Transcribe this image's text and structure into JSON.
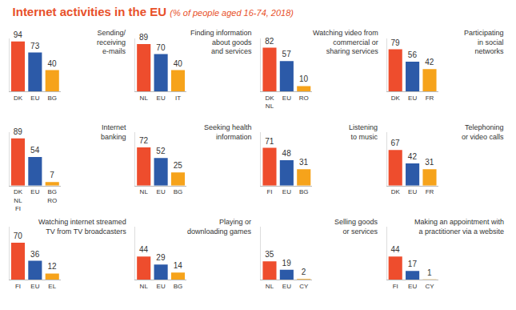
{
  "title": "Internet activities in the EU",
  "subtitle": "(% of people aged 16-74, 2018)",
  "chart_data": [
    {
      "type": "bar",
      "title": "Sending/\nreceiving\ne-mails",
      "categories": [
        "DK",
        "EU",
        "BG"
      ],
      "values": [
        94,
        73,
        40
      ],
      "colors": [
        "#ee4d2d",
        "#2c5aa8",
        "#f6a31b"
      ],
      "data_labels": true,
      "tick_labels": "x",
      "ylim": [
        0,
        100
      ]
    },
    {
      "type": "bar",
      "title": "Finding information\nabout goods\nand services",
      "categories": [
        "NL",
        "EU",
        "IT"
      ],
      "values": [
        89,
        70,
        40
      ],
      "colors": [
        "#ee4d2d",
        "#2c5aa8",
        "#f6a31b"
      ],
      "data_labels": true,
      "tick_labels": "x",
      "ylim": [
        0,
        100
      ]
    },
    {
      "type": "bar",
      "title": "Watching video from\ncommercial or\nsharing services",
      "categories": [
        "DK\nNL",
        "EU",
        "RO"
      ],
      "values": [
        82,
        57,
        10
      ],
      "colors": [
        "#ee4d2d",
        "#2c5aa8",
        "#f6a31b"
      ],
      "data_labels": true,
      "tick_labels": "x",
      "ylim": [
        0,
        100
      ]
    },
    {
      "type": "bar",
      "title": "Participating\nin social\nnetworks",
      "categories": [
        "DK",
        "EU",
        "FR"
      ],
      "values": [
        79,
        56,
        42
      ],
      "colors": [
        "#ee4d2d",
        "#2c5aa8",
        "#f6a31b"
      ],
      "data_labels": true,
      "tick_labels": "x",
      "ylim": [
        0,
        100
      ]
    },
    {
      "type": "bar",
      "title": "Internet\nbanking",
      "categories": [
        "DK\nNL\nFI",
        "EU",
        "BG\nRO"
      ],
      "values": [
        89,
        54,
        7
      ],
      "colors": [
        "#ee4d2d",
        "#2c5aa8",
        "#f6a31b"
      ],
      "data_labels": true,
      "tick_labels": "x",
      "ylim": [
        0,
        100
      ]
    },
    {
      "type": "bar",
      "title": "Seeking health\ninformation",
      "categories": [
        "NL",
        "EU",
        "BG"
      ],
      "values": [
        72,
        52,
        25
      ],
      "colors": [
        "#ee4d2d",
        "#2c5aa8",
        "#f6a31b"
      ],
      "data_labels": true,
      "tick_labels": "x",
      "ylim": [
        0,
        100
      ]
    },
    {
      "type": "bar",
      "title": "Listening\nto music",
      "categories": [
        "FI",
        "EU",
        "BG"
      ],
      "values": [
        71,
        48,
        31
      ],
      "colors": [
        "#ee4d2d",
        "#2c5aa8",
        "#f6a31b"
      ],
      "data_labels": true,
      "tick_labels": "x",
      "ylim": [
        0,
        100
      ]
    },
    {
      "type": "bar",
      "title": "Telephoning\nor video calls",
      "categories": [
        "DK",
        "EU",
        "FR"
      ],
      "values": [
        67,
        42,
        31
      ],
      "colors": [
        "#ee4d2d",
        "#2c5aa8",
        "#f6a31b"
      ],
      "data_labels": true,
      "tick_labels": "x",
      "ylim": [
        0,
        100
      ]
    },
    {
      "type": "bar",
      "title": "Watching internet streamed\nTV from TV broadcasters",
      "categories": [
        "FI",
        "EU",
        "EL"
      ],
      "values": [
        70,
        36,
        12
      ],
      "colors": [
        "#ee4d2d",
        "#2c5aa8",
        "#f6a31b"
      ],
      "data_labels": true,
      "tick_labels": "x",
      "ylim": [
        0,
        100
      ]
    },
    {
      "type": "bar",
      "title": "Playing or\ndownloading games",
      "categories": [
        "NL",
        "EU",
        "BG"
      ],
      "values": [
        44,
        29,
        14
      ],
      "colors": [
        "#ee4d2d",
        "#2c5aa8",
        "#f6a31b"
      ],
      "data_labels": true,
      "tick_labels": "x",
      "ylim": [
        0,
        100
      ]
    },
    {
      "type": "bar",
      "title": "Selling goods\nor services",
      "categories": [
        "NL",
        "EU",
        "CY"
      ],
      "values": [
        35,
        19,
        2
      ],
      "colors": [
        "#ee4d2d",
        "#2c5aa8",
        "#f6a31b"
      ],
      "data_labels": true,
      "tick_labels": "x",
      "ylim": [
        0,
        100
      ]
    },
    {
      "type": "bar",
      "title": "Making an appointment with\na practitioner via a website",
      "categories": [
        "FI",
        "EU",
        "CY"
      ],
      "values": [
        44,
        17,
        1
      ],
      "colors": [
        "#ee4d2d",
        "#2c5aa8",
        "#f6a31b"
      ],
      "data_labels": true,
      "tick_labels": "x",
      "ylim": [
        0,
        100
      ]
    }
  ]
}
